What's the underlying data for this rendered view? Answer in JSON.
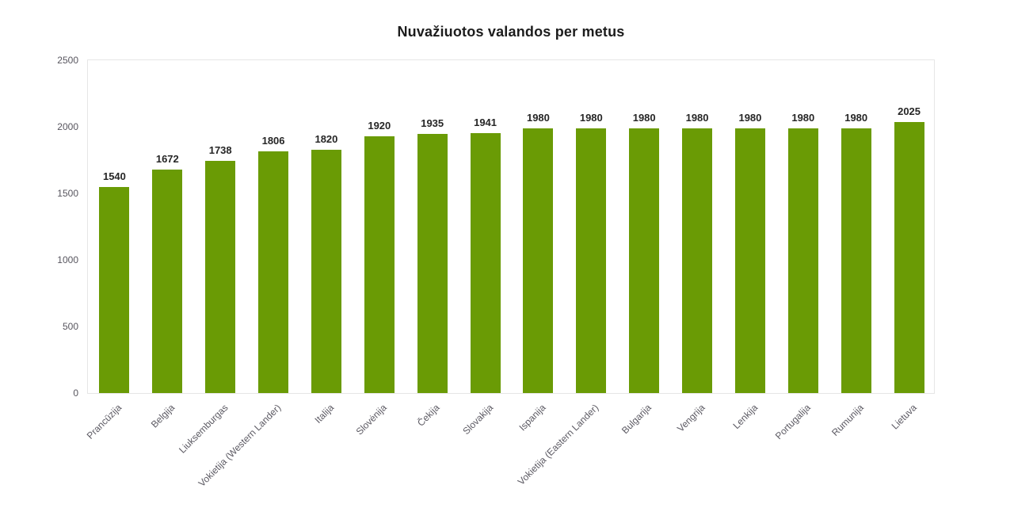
{
  "chart_data": {
    "type": "bar",
    "title": "Nuvažiuotos valandos per metus",
    "categories": [
      "Prancūzija",
      "Belgija",
      "Liuksemburgas",
      "Vokietija (Western Lander)",
      "Italija",
      "Slovėnija",
      "Čekija",
      "Slovakija",
      "Ispanija",
      "Vokietija (Eastern Lander)",
      "Bulgarija",
      "Vengrija",
      "Lenkija",
      "Portugalija",
      "Rumunija",
      "Lietuva"
    ],
    "values": [
      1540,
      1672,
      1738,
      1806,
      1820,
      1920,
      1935,
      1941,
      1980,
      1980,
      1980,
      1980,
      1980,
      1980,
      1980,
      2025
    ],
    "value_labels_shown": true,
    "xlabel": "",
    "ylabel": "",
    "ylim": [
      0,
      2500
    ],
    "yticks": [
      0,
      500,
      1000,
      1500,
      2000,
      2500
    ],
    "grid": false,
    "legend_position": "none",
    "bar_color": "#6a9b05",
    "value_label_color": "#262626",
    "axis_label_color": "#5c5a63",
    "plot_border_color": "#e6e6e6",
    "background_color": "#ffffff"
  }
}
